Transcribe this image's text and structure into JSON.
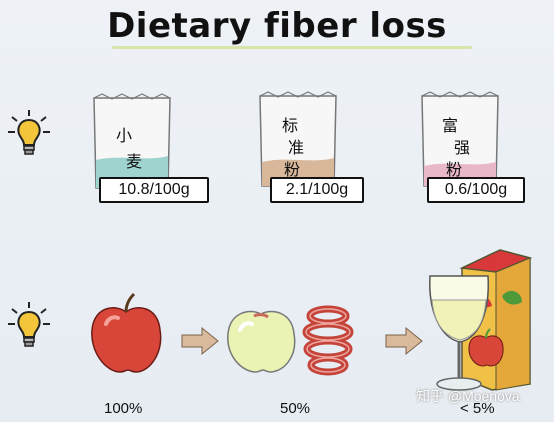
{
  "title": "Dietary fiber loss",
  "bags": [
    {
      "chars": [
        "小",
        "麦"
      ],
      "label": "10.8/100g"
    },
    {
      "chars": [
        "标",
        "准",
        "粉"
      ],
      "label": "2.1/100g"
    },
    {
      "chars": [
        "富",
        "强",
        "粉"
      ],
      "label": "0.6/100g"
    }
  ],
  "percentages": [
    "100%",
    "50%",
    "< 5%"
  ],
  "watermark": "知乎 @Moenova",
  "icons": [
    "lightbulb-icon",
    "apple-icon",
    "arrow-right-icon",
    "peeled-apple-icon",
    "apple-peel-icon",
    "juice-glass-icon",
    "juice-box-icon"
  ],
  "colors": {
    "wheat_fill": "#9fd3cf",
    "standard_fill": "#d8b79a",
    "fine_fill": "#e8b8c8",
    "apple_red": "#d8463a",
    "arrow": "#d9ba9c"
  }
}
